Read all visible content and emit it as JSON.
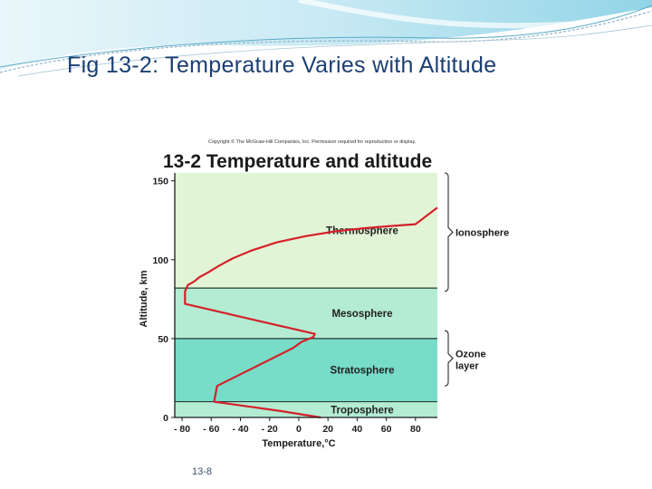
{
  "slide": {
    "title": "Fig 13-2: Temperature Varies with Altitude",
    "number": "13-8"
  },
  "colors": {
    "title_text": "#1b3f73",
    "thermosphere_fill": "#e2f4d6",
    "mesosphere_fill": "#b3ecd2",
    "stratosphere_fill": "#77ddc8",
    "troposphere_fill": "#b3ecd2",
    "profile_line": "#d6202a",
    "boundary_line": "#2a3a33"
  },
  "chart_data": {
    "type": "line",
    "copyright": "Copyright © The McGraw-Hill Companies, Inc. Permission required for reproduction or display.",
    "title": "13-2 Temperature and altitude",
    "xlabel": "Temperature,°C",
    "ylabel": "Altitude, km",
    "xlim": [
      -85,
      95
    ],
    "ylim": [
      0,
      155
    ],
    "xticks": [
      -80,
      -60,
      -40,
      -20,
      0,
      20,
      40,
      60,
      80
    ],
    "xtick_labels": [
      "- 80",
      "- 60",
      "- 40",
      "- 20",
      "0",
      "20",
      "40",
      "60",
      "80"
    ],
    "yticks": [
      0,
      50,
      100,
      150
    ],
    "layers": [
      {
        "name": "Troposphere",
        "bottom": 0,
        "top": 10
      },
      {
        "name": "Stratosphere",
        "bottom": 10,
        "top": 50
      },
      {
        "name": "Mesosphere",
        "bottom": 50,
        "top": 82
      },
      {
        "name": "Thermosphere",
        "bottom": 82,
        "top": 155
      }
    ],
    "series": [
      {
        "x": [
          15,
          -12,
          -58,
          -56,
          -4,
          2,
          10,
          11,
          -78,
          -78,
          -76,
          -72,
          -68,
          -62,
          -55,
          -45,
          -32,
          -15,
          5,
          25,
          45,
          65,
          80,
          95
        ],
        "y": [
          0,
          4,
          10,
          20,
          44,
          48,
          51,
          53,
          72,
          80,
          84,
          86,
          89,
          92,
          96,
          101,
          106,
          111,
          115,
          118,
          120,
          121.5,
          122.5,
          133
        ]
      }
    ],
    "annotations": [
      {
        "label": "Ionosphere",
        "bottom": 80,
        "top": 155
      },
      {
        "label": "Ozone",
        "label2": "layer",
        "bottom": 20,
        "top": 55
      }
    ]
  }
}
